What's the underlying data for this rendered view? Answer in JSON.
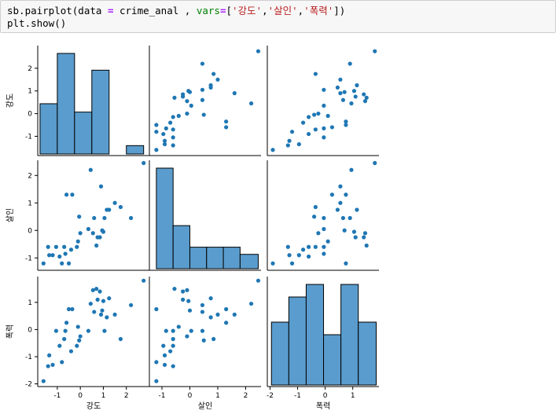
{
  "code_cell": {
    "line1": {
      "a": "sb.pairplot(data ",
      "b": "=",
      "c": " crime_anal , ",
      "d": "vars",
      "e": "=",
      "f": "[",
      "g": "'강도'",
      "h": ",",
      "i": "'살인'",
      "j": ",",
      "k": "'폭력'",
      "l": "])"
    },
    "line2": "plt.show()"
  },
  "variables": [
    "강도",
    "살인",
    "폭력"
  ],
  "colors": {
    "point": "#1f77b4",
    "bar": "#5a9ccd",
    "bar_edge": "#000000",
    "cell_bg": "#f7f7f7"
  },
  "chart_data": {
    "type": "scatter",
    "kind": "pairplot",
    "variables": [
      "강도",
      "살인",
      "폭력"
    ],
    "axis_ranges": {
      "강도": [
        -1.85,
        3.0
      ],
      "살인": [
        -1.45,
        2.55
      ],
      "폭력": [
        -2.1,
        1.95
      ]
    },
    "ticks": {
      "강도": {
        "x": [
          -1,
          0,
          1,
          2
        ],
        "y": [
          -1,
          0,
          1,
          2
        ]
      },
      "살인": {
        "x": [
          -1,
          0,
          1,
          2
        ],
        "y": [
          -1,
          0,
          1,
          2
        ]
      },
      "폭력": {
        "x": [
          -2,
          -1,
          0,
          1
        ],
        "y": [
          -2,
          -1,
          0,
          1
        ]
      }
    },
    "points": [
      {
        "강도": 2.75,
        "살인": 2.45,
        "폭력": 1.8
      },
      {
        "강도": 2.2,
        "살인": 0.45,
        "폭력": 0.9
      },
      {
        "강도": 1.75,
        "살인": 0.85,
        "폭력": -0.35
      },
      {
        "강도": 1.5,
        "살인": 1.0,
        "폭력": 0.55
      },
      {
        "강도": 1.25,
        "살인": 0.75,
        "폭력": 1.15
      },
      {
        "강도": 1.15,
        "살인": 0.75,
        "폭력": 0.45
      },
      {
        "강도": 1.05,
        "살인": 0.45,
        "폭력": -0.05
      },
      {
        "강도": 1.0,
        "살인": -0.05,
        "폭력": 1.05
      },
      {
        "강도": 0.95,
        "살인": 0.0,
        "폭력": 0.7
      },
      {
        "강도": 0.9,
        "살인": 1.6,
        "폭력": 0.55
      },
      {
        "강도": 0.85,
        "살인": -0.25,
        "폭력": 1.4
      },
      {
        "강도": 0.75,
        "살인": -0.25,
        "폭력": 1.1
      },
      {
        "강도": 0.7,
        "살인": -0.55,
        "폭력": 1.5
      },
      {
        "강도": 0.6,
        "살인": 0.45,
        "폭력": 0.65
      },
      {
        "강도": 0.55,
        "살인": -0.1,
        "폭력": 1.45
      },
      {
        "강도": 0.45,
        "살인": 2.2,
        "폭력": 0.95
      },
      {
        "강도": 0.35,
        "살인": 0.05,
        "폭력": -0.05
      },
      {
        "강도": 0.0,
        "살인": -0.1,
        "폭력": -0.25
      },
      {
        "강도": -0.05,
        "살인": 0.5,
        "폭력": -0.4
      },
      {
        "강도": -0.1,
        "살인": -0.4,
        "폭력": 0.1
      },
      {
        "강도": -0.15,
        "살인": -0.6,
        "폭력": -0.6
      },
      {
        "강도": -0.35,
        "살인": 1.3,
        "폭력": 0.75
      },
      {
        "강도": -0.4,
        "살인": -0.7,
        "폭력": -0.8
      },
      {
        "강도": -0.5,
        "살인": -1.2,
        "폭력": 0.75
      },
      {
        "강도": -0.6,
        "살인": 1.3,
        "폭력": 0.25
      },
      {
        "강도": -0.65,
        "살인": -0.85,
        "폭력": -0.05
      },
      {
        "강도": -0.7,
        "살인": -0.6,
        "폭력": -0.35
      },
      {
        "강도": -0.8,
        "살인": -1.2,
        "폭력": -1.2
      },
      {
        "강도": -0.9,
        "살인": -0.95,
        "폭력": -0.6
      },
      {
        "강도": -1.05,
        "살인": -0.6,
        "폭력": -0.05
      },
      {
        "강도": -1.2,
        "살인": -0.9,
        "폭력": -1.3
      },
      {
        "강도": -1.35,
        "살인": -0.9,
        "폭력": -0.95
      },
      {
        "강도": -1.4,
        "살인": -0.6,
        "폭력": -1.35
      },
      {
        "강도": -1.6,
        "살인": -1.2,
        "폭력": -1.9
      }
    ],
    "histograms": {
      "강도": {
        "edges": [
          -1.75,
          -1.0,
          -0.25,
          0.5,
          1.25,
          2.0,
          2.75
        ],
        "counts": [
          6,
          12,
          5,
          10,
          0,
          1
        ]
      },
      "살인": {
        "edges": [
          -1.2,
          -0.6,
          0.0,
          0.6,
          1.2,
          1.8,
          2.45
        ],
        "counts": [
          14,
          6,
          3,
          3,
          3,
          2
        ]
      },
      "폭력": {
        "edges": [
          -1.95,
          -1.32,
          -0.69,
          -0.06,
          0.57,
          1.2,
          1.85
        ],
        "counts": [
          5,
          7,
          8,
          4,
          8,
          5
        ]
      }
    },
    "grid": false,
    "legend": "none",
    "title": "",
    "xlabels": [
      "강도",
      "살인",
      "폭력"
    ],
    "ylabels": [
      "강도",
      "살인",
      "폭력"
    ]
  }
}
